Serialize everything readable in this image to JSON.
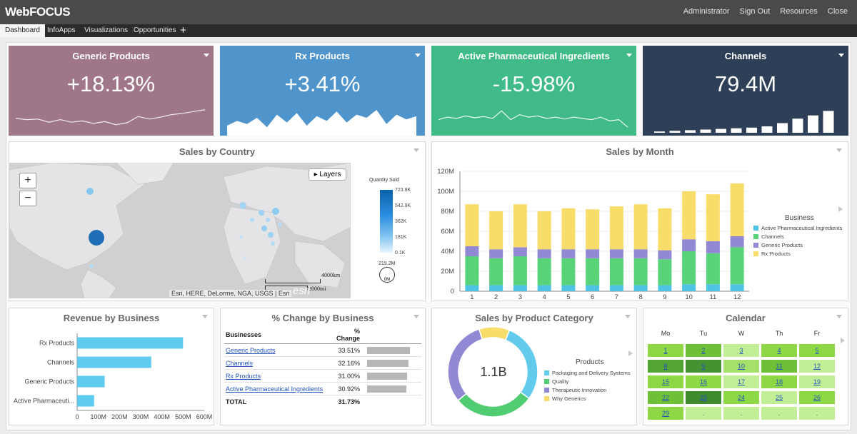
{
  "app": {
    "logo": "WebFOCUS"
  },
  "toplinks": [
    "Administrator",
    "Sign Out",
    "Resources",
    "Close"
  ],
  "tabs": [
    "Dashboard",
    "InfoApps",
    "Visualizations",
    "Opportunities"
  ],
  "add_tab": "+",
  "kpis": [
    {
      "title": "Generic Products",
      "value": "+18.13%",
      "color": "#9f7788"
    },
    {
      "title": "Rx Products",
      "value": "+3.41%",
      "color": "#4f95cc"
    },
    {
      "title": "Active Pharmaceutical Ingredients",
      "value": "-15.98%",
      "color": "#40bb88"
    },
    {
      "title": "Channels",
      "value": "79.4M",
      "color": "#2e3f58"
    }
  ],
  "map_panel": {
    "title": "Sales by Country",
    "layers_label": "Layers",
    "zoom_in": "+",
    "zoom_out": "−",
    "attribution": "Esri, HERE, DeLorme, NGA, USGS | Esri",
    "esri_logo": "esri",
    "scale_km": "4000km",
    "scale_mi": "2000mi",
    "legend_title": "Quantity Sold",
    "legend_ticks": [
      "723.8K",
      "542.9K",
      "362K",
      "181K",
      "0.1K"
    ],
    "size_top": "219.2M",
    "size_bottom": "0M"
  },
  "month_panel": {
    "title": "Sales by Month"
  },
  "revenue_panel": {
    "title": "Revenue by Business"
  },
  "pct_panel": {
    "title": "% Change by Business",
    "col_business": "Businesses",
    "col_change": "% Change",
    "rows": [
      {
        "name": "Generic Products",
        "change": "33.51%",
        "value": 33.51
      },
      {
        "name": "Channels",
        "change": "32.16%",
        "value": 32.16
      },
      {
        "name": "Rx Products",
        "change": "31.00%",
        "value": 31.0
      },
      {
        "name": "Active Pharmaceutical Ingredients",
        "change": "30.92%",
        "value": 30.92
      }
    ],
    "total_label": "TOTAL",
    "total_value": "31.73%"
  },
  "category_panel": {
    "title": "Sales by Product Category",
    "center_label": "1.1B",
    "legend_title": "Products"
  },
  "calendar_panel": {
    "title": "Calendar",
    "days": [
      "Mo",
      "Tu",
      "W",
      "Th",
      "Fr"
    ],
    "cells": [
      [
        "1",
        "2",
        "3",
        "4",
        "5"
      ],
      [
        "8",
        "9",
        "10",
        "11",
        "12"
      ],
      [
        "15",
        "16",
        "17",
        "18",
        "19"
      ],
      [
        "22",
        "23",
        "24",
        "25",
        "26"
      ],
      [
        "29",
        ".",
        ".",
        ".",
        "."
      ]
    ],
    "cell_colors": [
      [
        "#8fd845",
        "#6ec036",
        "#c2ee96",
        "#8fd845",
        "#8fd845"
      ],
      [
        "#52a534",
        "#449332",
        "#a5e06a",
        "#6ec036",
        "#c2ee96"
      ],
      [
        "#8fd845",
        "#8fd845",
        "#c2ee96",
        "#8fd845",
        "#c2ee96"
      ],
      [
        "#6ec036",
        "#3e8b2e",
        "#8fd845",
        "#c2ee96",
        "#8fd845"
      ],
      [
        "#8fd845",
        "#c2ee96",
        "#c2ee96",
        "#c2ee96",
        "#c2ee96"
      ]
    ]
  },
  "chart_data": [
    {
      "type": "bar",
      "id": "sales-by-month",
      "title": "Sales by Month",
      "categories": [
        "1",
        "2",
        "3",
        "4",
        "5",
        "6",
        "7",
        "8",
        "9",
        "10",
        "11",
        "12"
      ],
      "series": [
        {
          "name": "Active Pharmaceutical Ingredients",
          "color": "#4ec3e4",
          "values": [
            6,
            6,
            6,
            6,
            6,
            6,
            6,
            6,
            6,
            7,
            7,
            7
          ]
        },
        {
          "name": "Channels",
          "color": "#58d37a",
          "values": [
            29,
            27,
            29,
            27,
            27,
            27,
            27,
            27,
            26,
            33,
            31,
            37
          ]
        },
        {
          "name": "Generic Products",
          "color": "#9289d4",
          "values": [
            10,
            9,
            9,
            9,
            9,
            9,
            9,
            9,
            9,
            12,
            12,
            11
          ]
        },
        {
          "name": "Rx Products",
          "color": "#f8dd6a",
          "values": [
            42,
            38,
            43,
            38,
            41,
            40,
            43,
            45,
            42,
            48,
            47,
            53
          ]
        }
      ],
      "xlabel": "",
      "ylabel": "",
      "ylim": [
        0,
        120
      ],
      "ytick_labels": [
        "0",
        "20M",
        "40M",
        "60M",
        "80M",
        "100M",
        "120M"
      ],
      "legend_title": "Business",
      "legend": "right"
    },
    {
      "type": "bar",
      "orientation": "horizontal",
      "id": "revenue-by-business",
      "title": "Revenue by Business",
      "categories": [
        "Rx Products",
        "Channels",
        "Generic Products",
        "Active Pharmaceuti..."
      ],
      "values": [
        500,
        350,
        130,
        80
      ],
      "color": "#60cbf0",
      "xlim": [
        0,
        600
      ],
      "xtick_labels": [
        "0",
        "100M",
        "200M",
        "300M",
        "400M",
        "500M",
        "600M"
      ]
    },
    {
      "type": "pie",
      "id": "sales-by-product-category",
      "title": "Sales by Product Category",
      "categories": [
        "Packaging and Delivery Systems",
        "Quality",
        "Therapeutic Innovation",
        "Why Generics"
      ],
      "values": [
        29,
        29,
        31,
        11
      ],
      "colors": [
        "#62cbec",
        "#50cc72",
        "#9289d4",
        "#f8dd6a"
      ],
      "center_label": "1.1B",
      "legend_title": "Products"
    },
    {
      "type": "area",
      "id": "kpi-spark-generic",
      "values": [
        24,
        22,
        23,
        18,
        22,
        18,
        20,
        16,
        19,
        14,
        17,
        27,
        23,
        26,
        30,
        32,
        35,
        38
      ],
      "ylim": [
        0,
        50
      ]
    },
    {
      "type": "area",
      "id": "kpi-spark-rx",
      "values": [
        10,
        16,
        12,
        20,
        8,
        24,
        14,
        26,
        10,
        22,
        16,
        28,
        14,
        24,
        20,
        30,
        12,
        24,
        18,
        22
      ],
      "ylim": [
        0,
        40
      ]
    },
    {
      "type": "line",
      "id": "kpi-spark-api",
      "values": [
        22,
        26,
        24,
        28,
        25,
        27,
        24,
        36,
        22,
        30,
        26,
        28,
        24,
        26,
        23,
        26,
        24,
        22,
        26,
        20,
        22,
        10
      ],
      "ylim": [
        0,
        50
      ]
    },
    {
      "type": "bar",
      "id": "kpi-spark-channels",
      "values": [
        2,
        3,
        4,
        5,
        6,
        7,
        8,
        10,
        15,
        22,
        27,
        34
      ],
      "ylim": [
        0,
        40
      ]
    }
  ]
}
